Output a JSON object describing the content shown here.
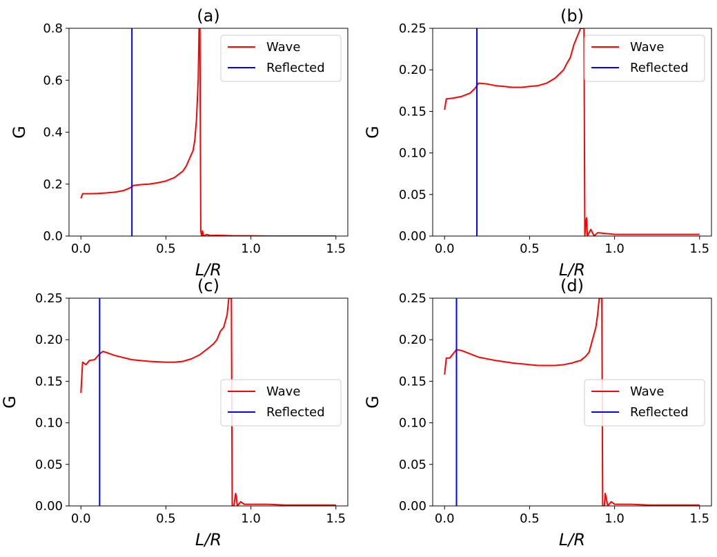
{
  "chart_data": [
    {
      "type": "line",
      "title": "(a)",
      "xlabel": "L/R",
      "ylabel": "G",
      "xlim": [
        -0.07,
        1.57
      ],
      "ylim": [
        0,
        0.8
      ],
      "xticks": [
        0.0,
        0.5,
        1.0,
        1.5
      ],
      "xtick_labels": [
        "0.0",
        "0.5",
        "1.0",
        "1.5"
      ],
      "yticks": [
        0.0,
        0.2,
        0.4,
        0.6,
        0.8
      ],
      "ytick_labels": [
        "0.0",
        "0.2",
        "0.4",
        "0.6",
        "0.8"
      ],
      "legend": [
        "Wave",
        "Reflected"
      ],
      "legend_position": "upper right",
      "reflected_x": 0.3,
      "peak_x": 0.7,
      "series": [
        {
          "name": "Wave",
          "color": "#ff0000",
          "x": [
            0.0,
            0.01,
            0.05,
            0.1,
            0.15,
            0.2,
            0.25,
            0.29,
            0.31,
            0.35,
            0.4,
            0.45,
            0.5,
            0.55,
            0.58,
            0.6,
            0.62,
            0.64,
            0.66,
            0.67,
            0.68,
            0.69,
            0.695,
            0.7,
            0.705,
            0.71,
            0.715,
            0.72,
            0.74,
            0.76,
            0.8,
            0.9,
            1.0,
            1.1,
            1.2,
            1.3,
            1.4,
            1.5
          ],
          "values": [
            0.145,
            0.163,
            0.163,
            0.164,
            0.166,
            0.169,
            0.175,
            0.186,
            0.195,
            0.198,
            0.2,
            0.205,
            0.212,
            0.225,
            0.24,
            0.25,
            0.27,
            0.3,
            0.33,
            0.37,
            0.45,
            0.6,
            0.8,
            0.8,
            0.02,
            0.0,
            0.02,
            0.0,
            0.006,
            0.002,
            0.003,
            0.001,
            0.001,
            0.0,
            0.0,
            0.0,
            0.0,
            0.0
          ]
        },
        {
          "name": "Reflected",
          "color": "#0000ff",
          "x": [
            0.3,
            0.3
          ],
          "values": [
            0.0,
            0.8
          ]
        }
      ]
    },
    {
      "type": "line",
      "title": "(b)",
      "xlabel": "L/R",
      "ylabel": "G",
      "xlim": [
        -0.07,
        1.57
      ],
      "ylim": [
        0,
        0.25
      ],
      "xticks": [
        0.0,
        0.5,
        1.0,
        1.5
      ],
      "xtick_labels": [
        "0.0",
        "0.5",
        "1.0",
        "1.5"
      ],
      "yticks": [
        0.0,
        0.05,
        0.1,
        0.15,
        0.2,
        0.25
      ],
      "ytick_labels": [
        "0.00",
        "0.05",
        "0.10",
        "0.15",
        "0.20",
        "0.25"
      ],
      "legend": [
        "Wave",
        "Reflected"
      ],
      "legend_position": "upper right",
      "reflected_x": 0.19,
      "peak_x": 0.82,
      "series": [
        {
          "name": "Wave",
          "color": "#ff0000",
          "x": [
            0.0,
            0.01,
            0.05,
            0.1,
            0.15,
            0.18,
            0.2,
            0.25,
            0.3,
            0.35,
            0.4,
            0.45,
            0.5,
            0.55,
            0.6,
            0.65,
            0.68,
            0.7,
            0.72,
            0.74,
            0.76,
            0.78,
            0.8,
            0.81,
            0.815,
            0.82,
            0.825,
            0.83,
            0.835,
            0.84,
            0.86,
            0.88,
            0.9,
            1.0,
            1.1,
            1.2,
            1.3,
            1.4,
            1.5
          ],
          "values": [
            0.152,
            0.165,
            0.166,
            0.168,
            0.172,
            0.178,
            0.184,
            0.183,
            0.181,
            0.18,
            0.179,
            0.179,
            0.18,
            0.181,
            0.184,
            0.19,
            0.196,
            0.2,
            0.208,
            0.215,
            0.23,
            0.24,
            0.25,
            0.25,
            0.25,
            0.25,
            0.0,
            0.015,
            0.022,
            0.0,
            0.008,
            0.0,
            0.004,
            0.002,
            0.002,
            0.002,
            0.002,
            0.002,
            0.002
          ]
        },
        {
          "name": "Reflected",
          "color": "#0000ff",
          "x": [
            0.19,
            0.19
          ],
          "values": [
            0.0,
            0.25
          ]
        }
      ]
    },
    {
      "type": "line",
      "title": "(c)",
      "xlabel": "L/R",
      "ylabel": "G",
      "xlim": [
        -0.07,
        1.57
      ],
      "ylim": [
        0,
        0.25
      ],
      "xticks": [
        0.0,
        0.5,
        1.0,
        1.5
      ],
      "xtick_labels": [
        "0.0",
        "0.5",
        "1.0",
        "1.5"
      ],
      "yticks": [
        0.0,
        0.05,
        0.1,
        0.15,
        0.2,
        0.25
      ],
      "ytick_labels": [
        "0.00",
        "0.05",
        "0.10",
        "0.15",
        "0.20",
        "0.25"
      ],
      "legend": [
        "Wave",
        "Reflected"
      ],
      "legend_position": "center right",
      "reflected_x": 0.11,
      "peak_x": 0.89,
      "series": [
        {
          "name": "Wave",
          "color": "#ff0000",
          "x": [
            0.0,
            0.01,
            0.03,
            0.05,
            0.08,
            0.11,
            0.13,
            0.2,
            0.3,
            0.4,
            0.5,
            0.55,
            0.6,
            0.65,
            0.7,
            0.75,
            0.78,
            0.8,
            0.82,
            0.84,
            0.86,
            0.87,
            0.88,
            0.885,
            0.89,
            0.9,
            0.91,
            0.915,
            0.92,
            0.94,
            0.96,
            1.0,
            1.1,
            1.2,
            1.3,
            1.4,
            1.5
          ],
          "values": [
            0.136,
            0.173,
            0.17,
            0.175,
            0.176,
            0.183,
            0.186,
            0.181,
            0.176,
            0.174,
            0.173,
            0.173,
            0.174,
            0.177,
            0.182,
            0.19,
            0.195,
            0.2,
            0.21,
            0.215,
            0.23,
            0.25,
            0.25,
            0.25,
            0.0,
            0.0,
            0.015,
            0.01,
            0.0,
            0.005,
            0.002,
            0.002,
            0.002,
            0.001,
            0.001,
            0.001,
            0.001
          ]
        },
        {
          "name": "Reflected",
          "color": "#0000ff",
          "x": [
            0.11,
            0.11
          ],
          "values": [
            0.0,
            0.25
          ]
        }
      ]
    },
    {
      "type": "line",
      "title": "(d)",
      "xlabel": "L/R",
      "ylabel": "G",
      "xlim": [
        -0.07,
        1.57
      ],
      "ylim": [
        0,
        0.25
      ],
      "xticks": [
        0.0,
        0.5,
        1.0,
        1.5
      ],
      "xtick_labels": [
        "0.0",
        "0.5",
        "1.0",
        "1.5"
      ],
      "yticks": [
        0.0,
        0.05,
        0.1,
        0.15,
        0.2,
        0.25
      ],
      "ytick_labels": [
        "0.00",
        "0.05",
        "0.10",
        "0.15",
        "0.20",
        "0.25"
      ],
      "legend": [
        "Wave",
        "Reflected"
      ],
      "legend_position": "center right",
      "reflected_x": 0.07,
      "peak_x": 0.93,
      "series": [
        {
          "name": "Wave",
          "color": "#ff0000",
          "x": [
            0.0,
            0.01,
            0.03,
            0.05,
            0.07,
            0.1,
            0.15,
            0.2,
            0.3,
            0.4,
            0.5,
            0.55,
            0.6,
            0.65,
            0.7,
            0.75,
            0.78,
            0.8,
            0.83,
            0.85,
            0.87,
            0.89,
            0.9,
            0.91,
            0.92,
            0.925,
            0.93,
            0.94,
            0.945,
            0.95,
            0.96,
            0.98,
            1.0,
            1.1,
            1.2,
            1.3,
            1.4,
            1.5
          ],
          "values": [
            0.158,
            0.178,
            0.178,
            0.183,
            0.188,
            0.187,
            0.183,
            0.179,
            0.175,
            0.172,
            0.17,
            0.169,
            0.169,
            0.169,
            0.17,
            0.172,
            0.174,
            0.175,
            0.18,
            0.185,
            0.2,
            0.215,
            0.23,
            0.25,
            0.25,
            0.25,
            0.0,
            0.0,
            0.015,
            0.01,
            0.0,
            0.005,
            0.002,
            0.002,
            0.001,
            0.001,
            0.001,
            0.001
          ]
        },
        {
          "name": "Reflected",
          "color": "#0000ff",
          "x": [
            0.07,
            0.07
          ],
          "values": [
            0.0,
            0.25
          ]
        }
      ]
    }
  ]
}
